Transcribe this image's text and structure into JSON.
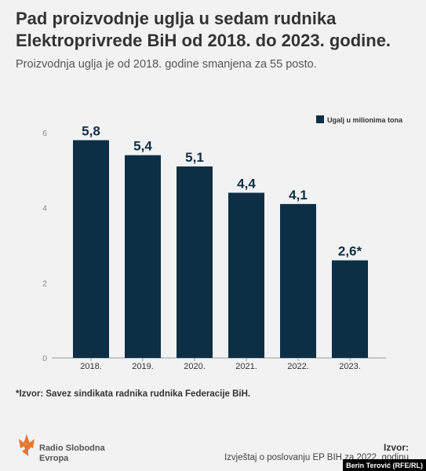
{
  "title": "Pad proizvodnje uglja u sedam rudnika Elektroprivrede BiH od 2018. do 2023. godine.",
  "subtitle": "Proizvodnja uglja je od 2018. godine smanjena za 55 posto.",
  "note": "*Izvor: Savez sindikata radnika rudnika Federacije BiH.",
  "logo": {
    "line1": "Radio Slobodna",
    "line2": "Evropa"
  },
  "source": {
    "label": "Izvor:",
    "text": "Izvještaj o poslovanju EP BIH za 2022. godinu"
  },
  "credit": "Berin Terović (RFE/RL)",
  "colors": {
    "bar": "#0d2f45",
    "axis": "#999999",
    "background": "#f2f2f2"
  },
  "chart_data": {
    "type": "bar",
    "categories": [
      "2018.",
      "2019.",
      "2020.",
      "2021.",
      "2022.",
      "2023."
    ],
    "series": [
      {
        "name": "Ugalj u milionima tona",
        "values": [
          5.8,
          5.4,
          5.1,
          4.4,
          4.1,
          2.6
        ]
      }
    ],
    "value_labels": [
      "5,8",
      "5,4",
      "5,1",
      "4,4",
      "4,1",
      "2,6*"
    ],
    "yticks": [
      0,
      2,
      4,
      6
    ],
    "ylim": [
      0,
      6
    ],
    "grid": false,
    "legend_position": "top-right"
  }
}
